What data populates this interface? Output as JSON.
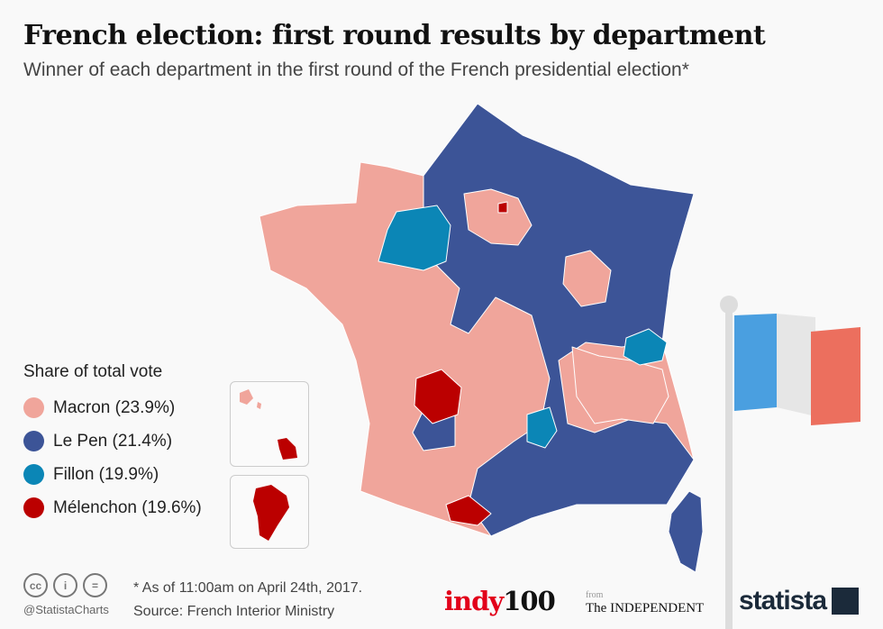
{
  "title": "French election: first round results by department",
  "subtitle": "Winner of each department in the first round of the French presidential election*",
  "legend": {
    "title": "Share of total vote",
    "items": [
      {
        "label": "Macron (23.9%)",
        "color": "#f0a59b"
      },
      {
        "label": "Le Pen (21.4%)",
        "color": "#3c5497"
      },
      {
        "label": "Fillon (19.9%)",
        "color": "#0b86b6"
      },
      {
        "label": "Mélenchon (19.6%)",
        "color": "#bb0000"
      }
    ]
  },
  "footer": {
    "note": "* As of 11:00am on April 24th, 2017.",
    "source": "Source: French Interior Ministry",
    "handle": "@StatistaCharts",
    "cc_icons": [
      "cc",
      "i",
      "="
    ],
    "indy_a": "indy",
    "indy_b": "100",
    "from": "from",
    "independent": "The INDEPENDENT",
    "statista": "statista"
  },
  "flag_colors": [
    "#4a9fe0",
    "#eeeeee",
    "#ec6f5e"
  ]
}
